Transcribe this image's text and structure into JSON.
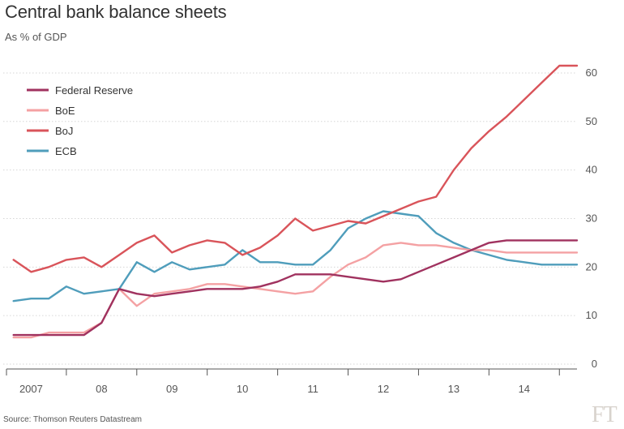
{
  "title": "Central bank balance sheets",
  "subtitle": "As % of GDP",
  "source": "Source: Thomson Reuters Datastream",
  "logo_text": "FT",
  "chart_data": {
    "type": "line",
    "title": "Central bank balance sheets",
    "subtitle": "As % of GDP",
    "xlabel": "",
    "ylabel": "",
    "x": [
      2006.75,
      2007.0,
      2007.25,
      2007.5,
      2007.75,
      2008.0,
      2008.25,
      2008.5,
      2008.75,
      2009.0,
      2009.25,
      2009.5,
      2009.75,
      2010.0,
      2010.25,
      2010.5,
      2010.75,
      2011.0,
      2011.25,
      2011.5,
      2011.75,
      2012.0,
      2012.25,
      2012.5,
      2012.75,
      2013.0,
      2013.25,
      2013.5,
      2013.75,
      2014.0,
      2014.25,
      2014.5,
      2014.75
    ],
    "xlim": [
      2006.65,
      2014.75
    ],
    "ylim": [
      -1,
      63
    ],
    "x_ticks": [
      {
        "value": 2007.0,
        "label": "2007"
      },
      {
        "value": 2008.0,
        "label": "08"
      },
      {
        "value": 2009.0,
        "label": "09"
      },
      {
        "value": 2010.0,
        "label": "10"
      },
      {
        "value": 2011.0,
        "label": "11"
      },
      {
        "value": 2012.0,
        "label": "12"
      },
      {
        "value": 2013.0,
        "label": "13"
      },
      {
        "value": 2014.0,
        "label": "14"
      }
    ],
    "x_boundaries": [
      2006.65,
      2007.5,
      2008.5,
      2009.5,
      2010.5,
      2011.5,
      2012.5,
      2013.5,
      2014.5
    ],
    "y_ticks": [
      0,
      10,
      20,
      30,
      40,
      50,
      60
    ],
    "grid": true,
    "y_axis_side": "right",
    "legend_position": "top-left",
    "series": [
      {
        "name": "Federal Reserve",
        "color": "#a0325f",
        "values": [
          6,
          6,
          6,
          6,
          6,
          8.5,
          15.5,
          14.5,
          14,
          14.5,
          15,
          15.5,
          15.5,
          15.5,
          16,
          17,
          18.5,
          18.5,
          18.5,
          18,
          17.5,
          17,
          17.5,
          19,
          20.5,
          22,
          23.5,
          25,
          25.5,
          25.5,
          25.5,
          25.5,
          25.5
        ]
      },
      {
        "name": "BoE",
        "color": "#f4a1a3",
        "values": [
          5.5,
          5.5,
          6.5,
          6.5,
          6.5,
          8.5,
          15.5,
          12,
          14.5,
          15,
          15.5,
          16.5,
          16.5,
          16,
          15.5,
          15,
          14.5,
          15,
          18,
          20.5,
          22,
          24.5,
          25,
          24.5,
          24.5,
          24,
          23.5,
          23.5,
          23,
          23,
          23,
          23,
          23
        ]
      },
      {
        "name": "BoJ",
        "color": "#d9545a",
        "values": [
          21.5,
          19,
          20,
          21.5,
          22,
          20,
          22.5,
          25,
          26.5,
          23,
          24.5,
          25.5,
          25,
          22.5,
          24,
          26.5,
          30,
          27.5,
          28.5,
          29.5,
          29,
          30.5,
          32,
          33.5,
          34.5,
          40,
          44.5,
          48,
          51,
          54.5,
          58,
          61.5,
          61.5
        ]
      },
      {
        "name": "ECB",
        "color": "#4f9dbb",
        "values": [
          13,
          13.5,
          13.5,
          16,
          14.5,
          15,
          15.5,
          21,
          19,
          21,
          19.5,
          20,
          20.5,
          23.5,
          21,
          21,
          20.5,
          20.5,
          23.5,
          28,
          30,
          31.5,
          31,
          30.5,
          27,
          25,
          23.5,
          22.5,
          21.5,
          21,
          20.5,
          20.5,
          20.5
        ]
      }
    ]
  }
}
